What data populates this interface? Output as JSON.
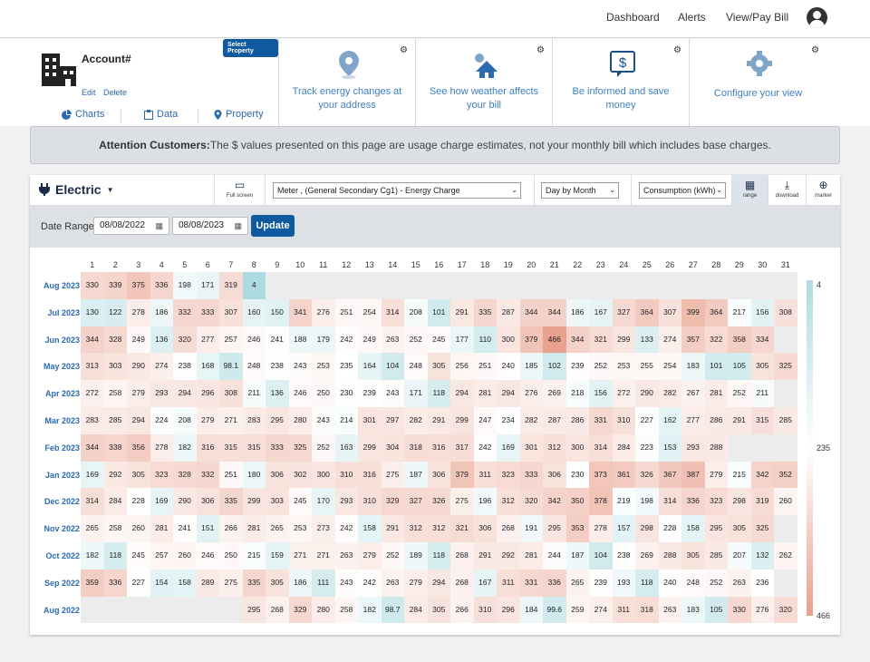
{
  "topnav": {
    "links": [
      "Dashboard",
      "Alerts",
      "View/Pay Bill"
    ]
  },
  "account": {
    "label": "Account#",
    "select_property": "Select Property",
    "edit": "Edit",
    "delete": "Delete",
    "tabs": [
      "Charts",
      "Data",
      "Property"
    ]
  },
  "features": [
    {
      "icon": "location-pin-icon",
      "text": "Track energy changes at your address"
    },
    {
      "icon": "weather-house-icon",
      "text": "See how weather affects your bill"
    },
    {
      "icon": "dollar-message-icon",
      "text": "Be informed and save money"
    },
    {
      "icon": "gear-icon",
      "text": "Configure your view"
    }
  ],
  "banner": {
    "bold": "Attention Customers:",
    "text": "The $ values presented on this page are usage charge estimates, not your monthly bill which includes base charges."
  },
  "toolbar": {
    "service": "Electric",
    "fullscreen": "Full screen",
    "meter_select": "Meter                         , (General Secondary Cg1) - Energy Charge",
    "view_select": "Day by Month",
    "measure_select": "Consumption (kWh)",
    "range": "range",
    "download": "download",
    "marker": "marker"
  },
  "filter": {
    "label": "Date Range",
    "start": "08/08/2022",
    "end": "08/08/2023",
    "update": "Update"
  },
  "colors": {
    "low": "#aedbe0",
    "mid": "#ffffff",
    "high": "#e9a08d",
    "accent": "#0f5a9e"
  },
  "chart_data": {
    "type": "heatmap",
    "x": [
      1,
      2,
      3,
      4,
      5,
      6,
      7,
      8,
      9,
      10,
      11,
      12,
      13,
      14,
      15,
      16,
      17,
      18,
      19,
      20,
      21,
      22,
      23,
      24,
      25,
      26,
      27,
      28,
      29,
      30,
      31
    ],
    "scale": {
      "min": 4,
      "mid": 235,
      "max": 466,
      "labels": [
        "4",
        "235",
        "466"
      ]
    },
    "rows": [
      {
        "month": "Aug 2023",
        "values": [
          330,
          339,
          375,
          336,
          198,
          171,
          319,
          4,
          null,
          null,
          null,
          null,
          null,
          null,
          null,
          null,
          null,
          null,
          null,
          null,
          null,
          null,
          null,
          null,
          null,
          null,
          null,
          null,
          null,
          null,
          null
        ]
      },
      {
        "month": "Jul 2023",
        "values": [
          130,
          122,
          278,
          186,
          332,
          333,
          307,
          160,
          150,
          341,
          276,
          251,
          254,
          314,
          208,
          101,
          291,
          335,
          287,
          344,
          344,
          186,
          167,
          327,
          364,
          307,
          399,
          364,
          217,
          156,
          308
        ]
      },
      {
        "month": "Jun 2023",
        "values": [
          344,
          328,
          249,
          136,
          320,
          277,
          257,
          246,
          241,
          188,
          179,
          242,
          249,
          263,
          252,
          245,
          177,
          110,
          300,
          379,
          466,
          344,
          321,
          299,
          133,
          274,
          357,
          322,
          358,
          334,
          null
        ]
      },
      {
        "month": "May 2023",
        "values": [
          313,
          303,
          290,
          274,
          238,
          168,
          98.1,
          248,
          238,
          243,
          253,
          235,
          164,
          104,
          248,
          305,
          256,
          251,
          240,
          185,
          102,
          239,
          252,
          253,
          255,
          254,
          183,
          101,
          105,
          305,
          325
        ]
      },
      {
        "month": "Apr 2023",
        "values": [
          272,
          258,
          279,
          293,
          294,
          296,
          308,
          211,
          136,
          246,
          250,
          230,
          239,
          243,
          171,
          118,
          294,
          281,
          294,
          276,
          269,
          218,
          156,
          272,
          290,
          282,
          267,
          281,
          252,
          211,
          null
        ]
      },
      {
        "month": "Mar 2023",
        "values": [
          283,
          285,
          294,
          224,
          208,
          279,
          271,
          283,
          295,
          280,
          243,
          214,
          301,
          297,
          282,
          291,
          299,
          247,
          234,
          282,
          287,
          286,
          331,
          310,
          227,
          162,
          277,
          286,
          291,
          315,
          285
        ]
      },
      {
        "month": "Feb 2023",
        "values": [
          344,
          338,
          356,
          278,
          182,
          316,
          315,
          315,
          333,
          325,
          252,
          163,
          299,
          304,
          318,
          316,
          317,
          242,
          169,
          301,
          312,
          300,
          314,
          284,
          223,
          153,
          293,
          288,
          null,
          null,
          null
        ]
      },
      {
        "month": "Jan 2023",
        "values": [
          169,
          292,
          305,
          323,
          328,
          332,
          251,
          180,
          306,
          302,
          300,
          310,
          316,
          275,
          187,
          306,
          379,
          311,
          323,
          333,
          306,
          230,
          373,
          361,
          326,
          367,
          387,
          279,
          215,
          342,
          352
        ]
      },
      {
        "month": "Dec 2022",
        "values": [
          314,
          284,
          228,
          169,
          290,
          306,
          335,
          299,
          303,
          245,
          170,
          293,
          310,
          329,
          327,
          326,
          275,
          196,
          312,
          320,
          342,
          350,
          378,
          219,
          198,
          314,
          336,
          323,
          298,
          319,
          260
        ]
      },
      {
        "month": "Nov 2022",
        "values": [
          265,
          258,
          260,
          281,
          241,
          151,
          266,
          281,
          265,
          253,
          273,
          242,
          158,
          291,
          312,
          312,
          321,
          306,
          268,
          191,
          295,
          353,
          278,
          157,
          298,
          228,
          158,
          295,
          305,
          325,
          null
        ]
      },
      {
        "month": "Oct 2022",
        "values": [
          182,
          118,
          245,
          257,
          260,
          246,
          250,
          215,
          159,
          271,
          271,
          263,
          279,
          252,
          189,
          118,
          268,
          291,
          292,
          281,
          244,
          187,
          104,
          238,
          269,
          288,
          305,
          285,
          207,
          132,
          262
        ]
      },
      {
        "month": "Sep 2022",
        "values": [
          359,
          336,
          227,
          154,
          158,
          289,
          275,
          335,
          305,
          186,
          111,
          243,
          242,
          263,
          279,
          294,
          268,
          167,
          311,
          331,
          336,
          265,
          239,
          193,
          118,
          240,
          248,
          252,
          263,
          236,
          null
        ]
      },
      {
        "month": "Aug 2022",
        "values": [
          null,
          null,
          null,
          null,
          null,
          null,
          null,
          295,
          268,
          329,
          280,
          258,
          182,
          98.7,
          284,
          305,
          266,
          310,
          296,
          184,
          99.6,
          259,
          274,
          311,
          318,
          263,
          183,
          105,
          330,
          276,
          320
        ]
      }
    ]
  }
}
